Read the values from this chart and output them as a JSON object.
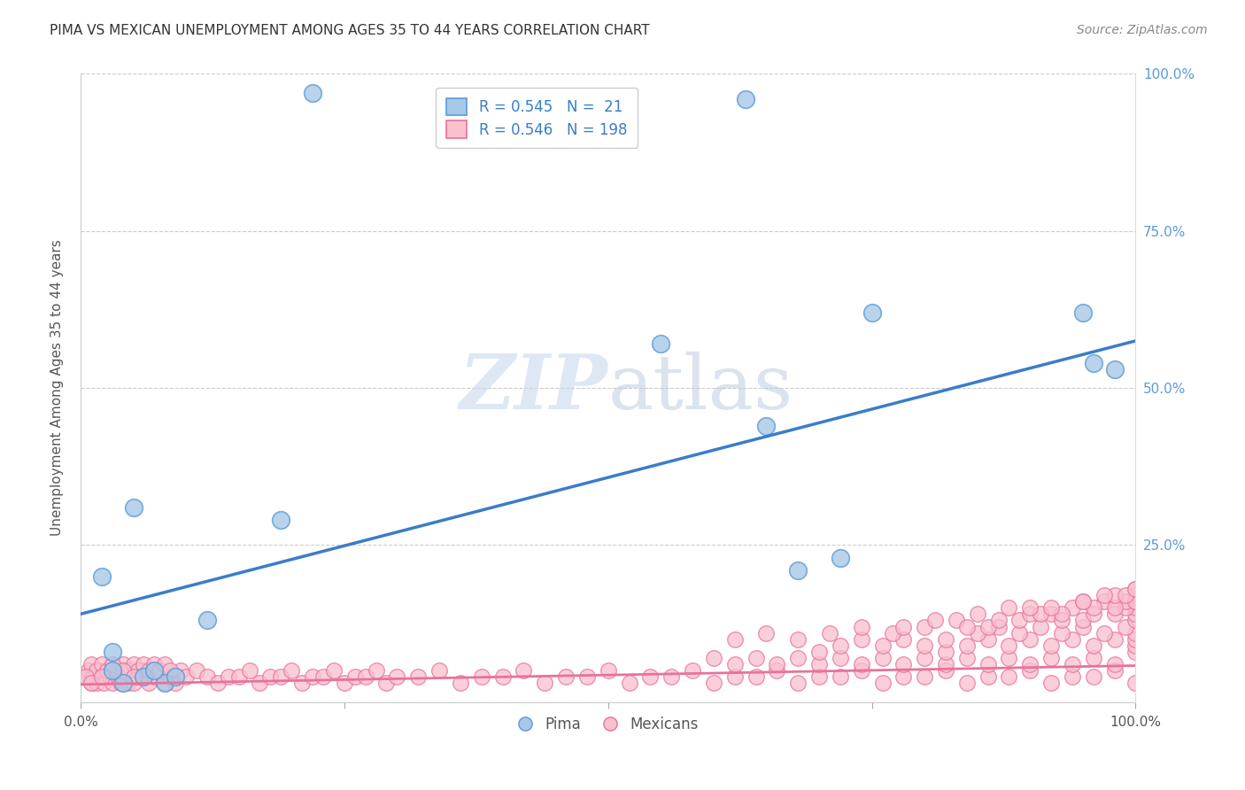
{
  "title": "PIMA VS MEXICAN UNEMPLOYMENT AMONG AGES 35 TO 44 YEARS CORRELATION CHART",
  "source": "Source: ZipAtlas.com",
  "ylabel": "Unemployment Among Ages 35 to 44 years",
  "xlim": [
    0,
    1.0
  ],
  "ylim": [
    0,
    1.0
  ],
  "pima_color": "#a8c8e8",
  "pima_edge_color": "#5b9bd5",
  "mexican_color": "#f9c0ce",
  "mexican_edge_color": "#e8729a",
  "line_pima_color": "#3a7dc9",
  "line_mexican_color": "#e8729a",
  "legend_color": "#3a7dc9",
  "watermark_zip": "ZIP",
  "watermark_atlas": "atlas",
  "pima_x": [
    0.02,
    0.03,
    0.04,
    0.05,
    0.06,
    0.08,
    0.09,
    0.12,
    0.19,
    0.22,
    0.55,
    0.63,
    0.65,
    0.68,
    0.72,
    0.75,
    0.95,
    0.96,
    0.98,
    0.03,
    0.07
  ],
  "pima_y": [
    0.2,
    0.08,
    0.03,
    0.31,
    0.04,
    0.03,
    0.04,
    0.13,
    0.29,
    0.97,
    0.57,
    0.96,
    0.44,
    0.21,
    0.23,
    0.62,
    0.62,
    0.54,
    0.53,
    0.05,
    0.05
  ],
  "mexican_x": [
    0.005,
    0.008,
    0.01,
    0.012,
    0.015,
    0.018,
    0.02,
    0.022,
    0.025,
    0.028,
    0.03,
    0.032,
    0.035,
    0.038,
    0.04,
    0.042,
    0.045,
    0.048,
    0.05,
    0.055,
    0.06,
    0.065,
    0.07,
    0.075,
    0.08,
    0.085,
    0.09,
    0.095,
    0.1,
    0.11,
    0.12,
    0.13,
    0.14,
    0.15,
    0.16,
    0.17,
    0.18,
    0.19,
    0.2,
    0.21,
    0.22,
    0.23,
    0.24,
    0.25,
    0.26,
    0.27,
    0.28,
    0.29,
    0.3,
    0.32,
    0.34,
    0.36,
    0.38,
    0.4,
    0.42,
    0.44,
    0.46,
    0.48,
    0.5,
    0.52,
    0.54,
    0.56,
    0.58,
    0.6,
    0.62,
    0.64,
    0.66,
    0.68,
    0.7,
    0.72,
    0.74,
    0.76,
    0.78,
    0.8,
    0.82,
    0.84,
    0.86,
    0.88,
    0.9,
    0.92,
    0.94,
    0.96,
    0.98,
    1.0,
    0.01,
    0.015,
    0.02,
    0.025,
    0.03,
    0.035,
    0.04,
    0.045,
    0.05,
    0.055,
    0.06,
    0.065,
    0.07,
    0.075,
    0.08,
    0.085,
    0.6,
    0.62,
    0.64,
    0.66,
    0.68,
    0.7,
    0.72,
    0.74,
    0.76,
    0.78,
    0.8,
    0.82,
    0.84,
    0.86,
    0.88,
    0.9,
    0.92,
    0.94,
    0.96,
    0.98,
    1.0,
    1.0,
    1.0,
    0.82,
    0.84,
    0.86,
    0.88,
    0.9,
    0.92,
    0.94,
    0.96,
    0.98,
    1.0,
    0.7,
    0.72,
    0.74,
    0.76,
    0.78,
    0.8,
    0.82,
    0.85,
    0.87,
    0.89,
    0.91,
    0.93,
    0.95,
    0.97,
    0.99,
    1.0,
    1.0,
    0.62,
    0.65,
    0.68,
    0.71,
    0.74,
    0.77,
    0.8,
    0.83,
    0.86,
    0.89,
    0.92,
    0.95,
    0.98,
    1.0,
    1.0,
    0.78,
    0.81,
    0.84,
    0.87,
    0.9,
    0.93,
    0.96,
    0.99,
    1.0,
    0.85,
    0.88,
    0.91,
    0.94,
    0.97,
    1.0,
    0.9,
    0.93,
    0.96,
    0.99,
    0.92,
    0.95,
    0.98,
    1.0,
    0.95,
    0.98,
    0.97,
    1.0,
    0.99,
    1.0,
    0.005,
    0.01,
    0.02,
    0.03,
    0.04,
    0.05
  ],
  "mexican_y": [
    0.04,
    0.05,
    0.03,
    0.04,
    0.03,
    0.05,
    0.04,
    0.03,
    0.05,
    0.04,
    0.03,
    0.05,
    0.04,
    0.03,
    0.04,
    0.05,
    0.03,
    0.04,
    0.03,
    0.04,
    0.05,
    0.03,
    0.04,
    0.05,
    0.03,
    0.04,
    0.03,
    0.05,
    0.04,
    0.05,
    0.04,
    0.03,
    0.04,
    0.04,
    0.05,
    0.03,
    0.04,
    0.04,
    0.05,
    0.03,
    0.04,
    0.04,
    0.05,
    0.03,
    0.04,
    0.04,
    0.05,
    0.03,
    0.04,
    0.04,
    0.05,
    0.03,
    0.04,
    0.04,
    0.05,
    0.03,
    0.04,
    0.04,
    0.05,
    0.03,
    0.04,
    0.04,
    0.05,
    0.03,
    0.04,
    0.04,
    0.05,
    0.03,
    0.04,
    0.04,
    0.05,
    0.03,
    0.04,
    0.04,
    0.05,
    0.03,
    0.04,
    0.04,
    0.05,
    0.03,
    0.04,
    0.04,
    0.05,
    0.03,
    0.06,
    0.05,
    0.06,
    0.05,
    0.06,
    0.05,
    0.06,
    0.05,
    0.06,
    0.05,
    0.06,
    0.05,
    0.06,
    0.05,
    0.06,
    0.05,
    0.07,
    0.06,
    0.07,
    0.06,
    0.07,
    0.06,
    0.07,
    0.06,
    0.07,
    0.06,
    0.07,
    0.06,
    0.07,
    0.06,
    0.07,
    0.06,
    0.07,
    0.06,
    0.07,
    0.06,
    0.08,
    0.09,
    0.1,
    0.08,
    0.09,
    0.1,
    0.09,
    0.1,
    0.09,
    0.1,
    0.09,
    0.1,
    0.11,
    0.08,
    0.09,
    0.1,
    0.09,
    0.1,
    0.09,
    0.1,
    0.11,
    0.12,
    0.11,
    0.12,
    0.11,
    0.12,
    0.11,
    0.12,
    0.13,
    0.14,
    0.1,
    0.11,
    0.1,
    0.11,
    0.12,
    0.11,
    0.12,
    0.13,
    0.12,
    0.13,
    0.14,
    0.13,
    0.14,
    0.15,
    0.16,
    0.12,
    0.13,
    0.12,
    0.13,
    0.14,
    0.13,
    0.14,
    0.15,
    0.16,
    0.14,
    0.15,
    0.14,
    0.15,
    0.16,
    0.17,
    0.15,
    0.14,
    0.15,
    0.16,
    0.15,
    0.16,
    0.15,
    0.16,
    0.16,
    0.17,
    0.17,
    0.18,
    0.17,
    0.18,
    0.04,
    0.03,
    0.04,
    0.06,
    0.05,
    0.04
  ],
  "pima_line_x0": 0.0,
  "pima_line_y0": 0.14,
  "pima_line_x1": 1.0,
  "pima_line_y1": 0.575,
  "mex_line_x0": 0.0,
  "mex_line_y0": 0.028,
  "mex_line_x1": 1.0,
  "mex_line_y1": 0.058
}
